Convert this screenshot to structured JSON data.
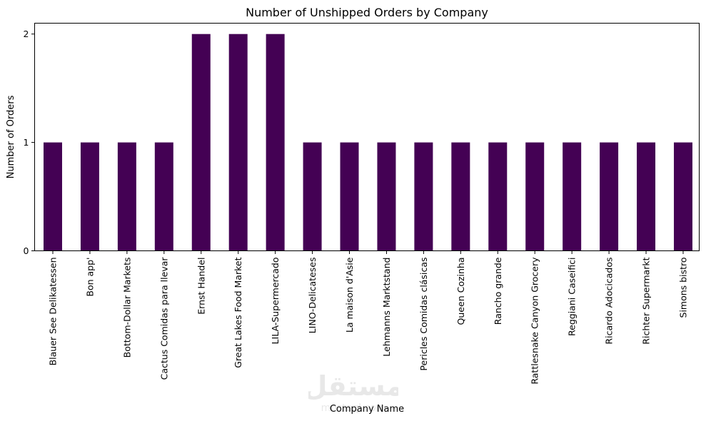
{
  "chart_data": {
    "type": "bar",
    "title": "Number of Unshipped Orders by Company",
    "xlabel": "Company Name",
    "ylabel": "Number of Orders",
    "categories": [
      "Blauer See Delikatessen",
      "Bon app'",
      "Bottom-Dollar Markets",
      "Cactus Comidas para llevar",
      "Ernst Handel",
      "Great Lakes Food Market",
      "LILA-Supermercado",
      "LINO-Delicateses",
      "La maison d'Asie",
      "Lehmanns Marktstand",
      "Pericles Comidas clásicas",
      "Queen Cozinha",
      "Rancho grande",
      "Rattlesnake Canyon Grocery",
      "Reggiani Caseifici",
      "Ricardo Adocicados",
      "Richter Supermarkt",
      "Simons bistro"
    ],
    "values": [
      1,
      1,
      1,
      1,
      2,
      2,
      2,
      1,
      1,
      1,
      1,
      1,
      1,
      1,
      1,
      1,
      1,
      1
    ],
    "yticks": [
      0,
      1,
      2
    ],
    "ylim": [
      0,
      2.1
    ],
    "bar_color": "#440154",
    "grid": false,
    "legend": "none"
  },
  "watermark": {
    "logo_text": "مستقل",
    "sub_text": "mostaql.com"
  }
}
